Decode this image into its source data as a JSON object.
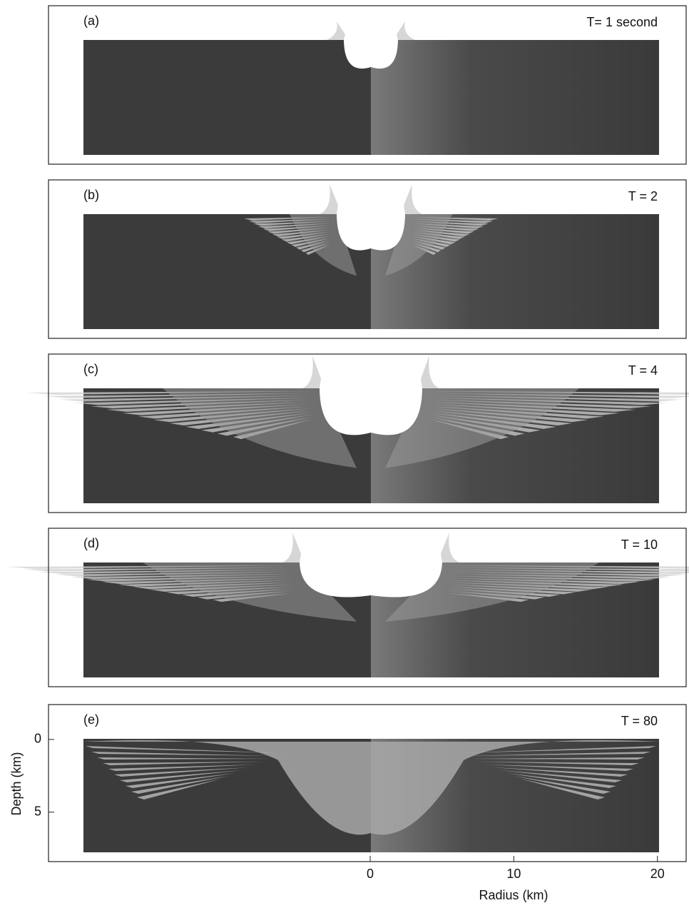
{
  "chart_data": [
    {
      "type": "image",
      "title": "(a)",
      "annotation": "T= 1 second"
    },
    {
      "type": "image",
      "title": "(b)",
      "annotation": "T = 2"
    },
    {
      "type": "image",
      "title": "(c)",
      "annotation": "T = 4"
    },
    {
      "type": "image",
      "title": "(d)",
      "annotation": "T = 10"
    },
    {
      "type": "image",
      "title": "(e)",
      "annotation": "T = 80",
      "xlabel": "Radius (km)",
      "ylabel": "Depth (km)",
      "xlim": [
        -22.4,
        22
      ],
      "xticks": [
        0,
        10,
        20
      ],
      "ylim": [
        8.4,
        -2.4
      ],
      "yticks": [
        0,
        5
      ]
    }
  ]
}
